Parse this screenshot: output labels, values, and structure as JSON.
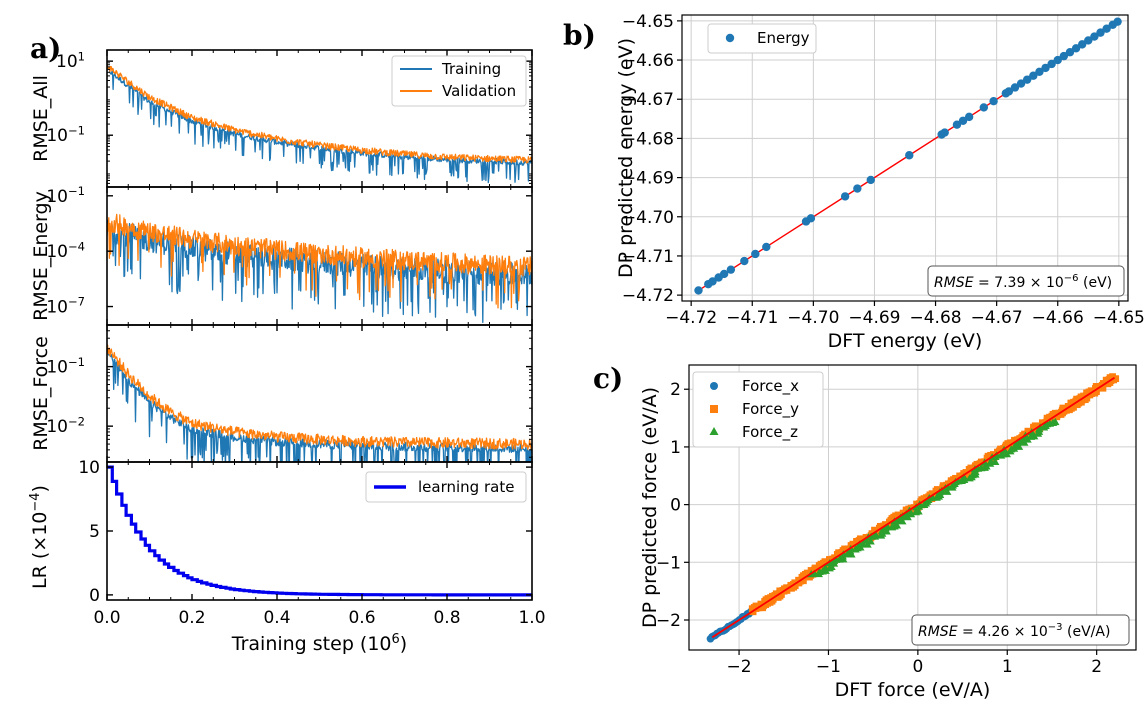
{
  "panels": {
    "a_label": "a)",
    "b_label": "b)",
    "c_label": "c)"
  },
  "colors": {
    "training": "#1f77b4",
    "validation": "#ff7f0e",
    "learning_rate": "#0000ee",
    "force_x": "#1f77b4",
    "force_y": "#ff7f0e",
    "force_z": "#2ca02c",
    "fit_line": "#ff0000",
    "grid": "#cfcfcf"
  },
  "chart_data": [
    {
      "id": "rmse_all",
      "type": "line",
      "ylabel": "RMSE_All",
      "yscale": "log",
      "ylim": [
        0.004,
        20
      ],
      "yticks": [
        {
          "v": 10,
          "base": "10",
          "exp": "1"
        },
        {
          "v": 0.1,
          "base": "10",
          "exp": "−1"
        }
      ],
      "xlim": [
        0,
        1
      ],
      "legend": [
        "Training",
        "Validation"
      ],
      "legend_loc": "upper right",
      "series": [
        {
          "name": "Training",
          "x": [
            0,
            0.05,
            0.1,
            0.2,
            0.3,
            0.4,
            0.5,
            0.6,
            0.7,
            0.8,
            0.9,
            1.0
          ],
          "values": [
            6,
            2.2,
            0.8,
            0.24,
            0.11,
            0.065,
            0.045,
            0.033,
            0.026,
            0.022,
            0.02,
            0.018
          ]
        },
        {
          "name": "Validation",
          "x": [
            0,
            0.05,
            0.1,
            0.2,
            0.3,
            0.4,
            0.5,
            0.6,
            0.7,
            0.8,
            0.9,
            1.0
          ],
          "values": [
            7,
            2.6,
            1.0,
            0.28,
            0.13,
            0.075,
            0.05,
            0.037,
            0.029,
            0.024,
            0.022,
            0.02
          ]
        }
      ]
    },
    {
      "id": "rmse_energy",
      "type": "line",
      "ylabel": "RMSE_Energy",
      "yscale": "log",
      "ylim": [
        1e-08,
        0.3
      ],
      "yticks": [
        {
          "v": 0.1,
          "base": "10",
          "exp": "−1"
        },
        {
          "v": 0.0001,
          "base": "10",
          "exp": "−4"
        },
        {
          "v": 1e-07,
          "base": "10",
          "exp": "−7"
        }
      ],
      "xlim": [
        0,
        1
      ],
      "series": [
        {
          "name": "Training",
          "x": [
            0,
            0.1,
            0.2,
            0.3,
            0.4,
            0.5,
            0.6,
            0.7,
            0.8,
            0.9,
            1.0
          ],
          "values": [
            0.0015,
            0.0004,
            0.00015,
            7e-05,
            4e-05,
            2.5e-05,
            1.6e-05,
            1.1e-05,
            8e-06,
            6e-06,
            5e-06
          ]
        },
        {
          "name": "Validation",
          "x": [
            0,
            0.1,
            0.2,
            0.3,
            0.4,
            0.5,
            0.6,
            0.7,
            0.8,
            0.9,
            1.0
          ],
          "values": [
            0.003,
            0.0009,
            0.00035,
            0.00016,
            9e-05,
            5.5e-05,
            3.5e-05,
            2.5e-05,
            1.8e-05,
            1.4e-05,
            1.1e-05
          ]
        }
      ]
    },
    {
      "id": "rmse_force",
      "type": "line",
      "ylabel": "RMSE_Force",
      "yscale": "log",
      "ylim": [
        0.0025,
        0.5
      ],
      "yticks": [
        {
          "v": 0.1,
          "base": "10",
          "exp": "−1"
        },
        {
          "v": 0.01,
          "base": "10",
          "exp": "−2"
        }
      ],
      "xlim": [
        0,
        1
      ],
      "series": [
        {
          "name": "Training",
          "x": [
            0,
            0.05,
            0.1,
            0.15,
            0.2,
            0.3,
            0.4,
            0.5,
            0.6,
            0.7,
            0.8,
            0.9,
            1.0
          ],
          "values": [
            0.18,
            0.06,
            0.025,
            0.014,
            0.009,
            0.0065,
            0.0055,
            0.005,
            0.0047,
            0.0045,
            0.0044,
            0.0043,
            0.0042
          ]
        },
        {
          "name": "Validation",
          "x": [
            0,
            0.05,
            0.1,
            0.15,
            0.2,
            0.3,
            0.4,
            0.5,
            0.6,
            0.7,
            0.8,
            0.9,
            1.0
          ],
          "values": [
            0.2,
            0.07,
            0.03,
            0.016,
            0.0105,
            0.0075,
            0.0062,
            0.0056,
            0.0052,
            0.005,
            0.0049,
            0.0048,
            0.0047
          ]
        }
      ]
    },
    {
      "id": "learning_rate",
      "type": "line",
      "ylabel_main": "LR (×10",
      "ylabel_exp": "−4",
      "ylabel_end": ")",
      "xlabel_main": "Training step (10",
      "xlabel_exp": "6",
      "xlabel_end": ")",
      "ylim": [
        -0.4,
        10.4
      ],
      "yticks": [
        0,
        5,
        10
      ],
      "xlim": [
        0,
        1
      ],
      "xticks": [
        0.0,
        0.2,
        0.4,
        0.6,
        0.8,
        1.0
      ],
      "xtick_labels": [
        "0.0",
        "0.2",
        "0.4",
        "0.6",
        "0.8",
        "1.0"
      ],
      "legend": [
        "learning rate"
      ],
      "legend_loc": "upper right",
      "series": [
        {
          "name": "learning rate",
          "x": [
            0,
            0.05,
            0.1,
            0.15,
            0.2,
            0.25,
            0.3,
            0.35,
            0.4,
            0.5,
            0.6,
            0.8,
            1.0
          ],
          "values": [
            10,
            5.8,
            3.4,
            2.0,
            1.2,
            0.7,
            0.42,
            0.25,
            0.15,
            0.05,
            0.02,
            0.005,
            0.001
          ]
        }
      ]
    },
    {
      "id": "energy_parity",
      "type": "scatter",
      "xlabel": "DFT energy (eV)",
      "ylabel": "DP predicted energy (eV)",
      "xlim": [
        -4.7215,
        -4.6485
      ],
      "ylim": [
        -4.7215,
        -4.6485
      ],
      "xticks": [
        -4.72,
        -4.71,
        -4.7,
        -4.69,
        -4.68,
        -4.67,
        -4.66,
        -4.65
      ],
      "xtick_labels": [
        "−4.72",
        "−4.71",
        "−4.70",
        "−4.69",
        "−4.68",
        "−4.67",
        "−4.66",
        "−4.65"
      ],
      "yticks": [
        -4.72,
        -4.71,
        -4.7,
        -4.69,
        -4.68,
        -4.67,
        -4.66,
        -4.65
      ],
      "ytick_labels": [
        "−4.72",
        "−4.71",
        "−4.70",
        "−4.69",
        "−4.68",
        "−4.67",
        "−4.66",
        "−4.65"
      ],
      "grid": true,
      "legend": [
        "Energy"
      ],
      "legend_loc": "upper left",
      "annotation": {
        "prefix": "RMSE",
        "middle": " = 7.39 × 10",
        "exp": "−6",
        "suffix": " (eV)"
      },
      "series": [
        {
          "name": "Energy",
          "x": [
            -4.7188,
            -4.7172,
            -4.7165,
            -4.7155,
            -4.7146,
            -4.7135,
            -4.7113,
            -4.7095,
            -4.7077,
            -4.7012,
            -4.7004,
            -4.6948,
            -4.6928,
            -4.6906,
            -4.6843,
            -4.679,
            -4.6785,
            -4.6765,
            -4.6755,
            -4.6745,
            -4.6721,
            -4.6705,
            -4.6685,
            -4.668,
            -4.667,
            -4.666,
            -4.665,
            -4.664,
            -4.663,
            -4.662,
            -4.661,
            -4.66,
            -4.659,
            -4.658,
            -4.657,
            -4.656,
            -4.655,
            -4.654,
            -4.653,
            -4.652,
            -4.651,
            -4.6502
          ],
          "values": [
            -4.7188,
            -4.7172,
            -4.7165,
            -4.7155,
            -4.7146,
            -4.7135,
            -4.7113,
            -4.7095,
            -4.7077,
            -4.7012,
            -4.7004,
            -4.6948,
            -4.6928,
            -4.6906,
            -4.6843,
            -4.679,
            -4.6785,
            -4.6765,
            -4.6755,
            -4.6745,
            -4.6721,
            -4.6705,
            -4.6685,
            -4.668,
            -4.667,
            -4.666,
            -4.665,
            -4.664,
            -4.663,
            -4.662,
            -4.661,
            -4.66,
            -4.659,
            -4.658,
            -4.657,
            -4.656,
            -4.655,
            -4.654,
            -4.653,
            -4.652,
            -4.651,
            -4.6502
          ]
        }
      ]
    },
    {
      "id": "force_parity",
      "type": "scatter",
      "xlabel": "DFT force (eV/A)",
      "ylabel": "DP predicted force (eV/A)",
      "xlim": [
        -2.56,
        2.44
      ],
      "ylim": [
        -2.52,
        2.42
      ],
      "xticks": [
        -2,
        -1,
        0,
        1,
        2
      ],
      "xtick_labels": [
        "−2",
        "−1",
        "0",
        "1",
        "2"
      ],
      "yticks": [
        -2,
        -1,
        0,
        1,
        2
      ],
      "ytick_labels": [
        "−2",
        "−1",
        "0",
        "1",
        "2"
      ],
      "grid": true,
      "legend": [
        "Force_x",
        "Force_y",
        "Force_z"
      ],
      "legend_loc": "upper left",
      "annotation": {
        "prefix": "RMSE",
        "middle": " = 4.26 × 10",
        "exp": "−3",
        "suffix": " (eV/A)"
      },
      "series": [
        {
          "name": "Force_x",
          "range": [
            -2.32,
            -1.85
          ]
        },
        {
          "name": "Force_y",
          "range": [
            -1.85,
            2.22
          ]
        },
        {
          "name": "Force_z",
          "range": [
            -1.2,
            1.5
          ]
        }
      ]
    }
  ]
}
